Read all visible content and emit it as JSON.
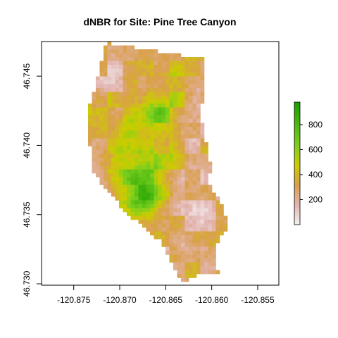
{
  "chart_data": {
    "type": "heatmap",
    "title": "dNBR for Site: Pine Tree Canyon",
    "xlabel": "",
    "ylabel": "",
    "xlim": [
      -120.8785,
      -120.8527
    ],
    "ylim": [
      46.7299,
      46.7475
    ],
    "x_ticks": [
      -120.875,
      -120.87,
      -120.865,
      -120.86,
      -120.855
    ],
    "x_tick_labels": [
      "-120.875",
      "-120.870",
      "-120.865",
      "-120.860",
      "-120.855"
    ],
    "y_ticks": [
      46.73,
      46.735,
      46.74,
      46.745
    ],
    "y_tick_labels": [
      "46.730",
      "46.735",
      "46.740",
      "46.745"
    ],
    "value_range": [
      0,
      980
    ],
    "legend": {
      "position": "right",
      "ticks": [
        200,
        400,
        600,
        800
      ],
      "tick_labels": [
        "200",
        "400",
        "600",
        "800"
      ]
    },
    "colormap": [
      {
        "value": 0,
        "color": "#f2f2f2"
      },
      {
        "value": 160,
        "color": "#e3b4b0"
      },
      {
        "value": 320,
        "color": "#d9a04a"
      },
      {
        "value": 480,
        "color": "#cccc00"
      },
      {
        "value": 640,
        "color": "#7ccf1e"
      },
      {
        "value": 980,
        "color": "#19a000"
      }
    ],
    "grid": false
  }
}
